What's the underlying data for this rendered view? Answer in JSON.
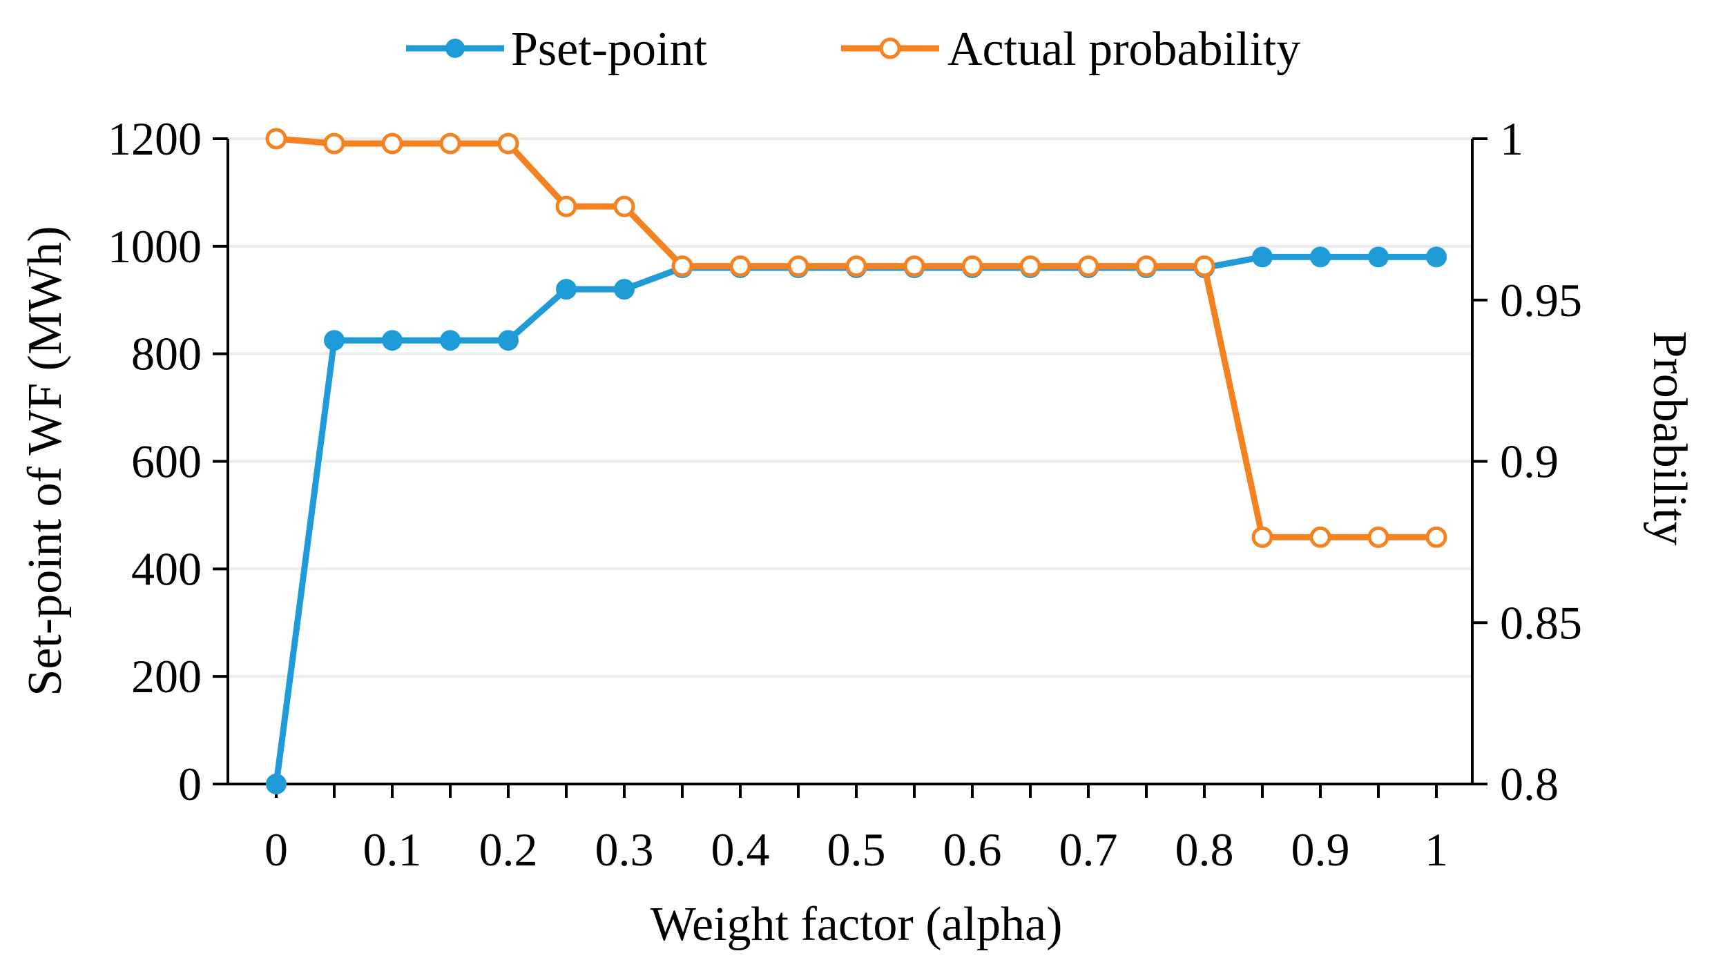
{
  "chart_data": {
    "type": "line",
    "xlabel": "Weight  factor (alpha)",
    "ylabel_left": "Set-point of WF (MWh)",
    "ylabel_right": "Probability",
    "x": [
      0,
      0.05,
      0.1,
      0.15,
      0.2,
      0.25,
      0.3,
      0.35,
      0.4,
      0.45,
      0.5,
      0.55,
      0.6,
      0.65,
      0.7,
      0.75,
      0.8,
      0.85,
      0.9,
      0.95,
      1
    ],
    "x_tick_labels": [
      "0",
      "0.1",
      "0.2",
      "0.3",
      "0.4",
      "0.5",
      "0.6",
      "0.7",
      "0.8",
      "0.9",
      "1"
    ],
    "xlim": [
      0,
      1
    ],
    "ylim_left": [
      0,
      1200
    ],
    "y_left_ticks": [
      0,
      200,
      400,
      600,
      800,
      1000,
      1200
    ],
    "y_left_tick_labels": [
      "0",
      "200",
      "400",
      "600",
      "800",
      "1000",
      "1200"
    ],
    "ylim_right": [
      0.8,
      1
    ],
    "y_right_ticks": [
      0.8,
      0.85,
      0.9,
      0.95,
      1
    ],
    "y_right_tick_labels": [
      "0.8",
      "0.85",
      "0.9",
      "0.95",
      "1"
    ],
    "series": [
      {
        "name": "Pset-point",
        "axis": "left",
        "color": "#1f9bd7",
        "marker": "filled-circle",
        "values": [
          0,
          825,
          825,
          825,
          825,
          920,
          920,
          960,
          960,
          960,
          960,
          960,
          960,
          960,
          960,
          960,
          960,
          980,
          980,
          980,
          980
        ]
      },
      {
        "name": "Actual probability",
        "axis": "right",
        "color": "#f58220",
        "marker": "hollow-circle",
        "values": [
          1.0,
          0.9985,
          0.9985,
          0.9985,
          0.9985,
          0.979,
          0.979,
          0.9605,
          0.9605,
          0.9605,
          0.9605,
          0.9605,
          0.9605,
          0.9605,
          0.9605,
          0.9605,
          0.9605,
          0.8765,
          0.8765,
          0.8765,
          0.8765
        ]
      }
    ],
    "grid": "horizontal",
    "legend": "top-center"
  }
}
